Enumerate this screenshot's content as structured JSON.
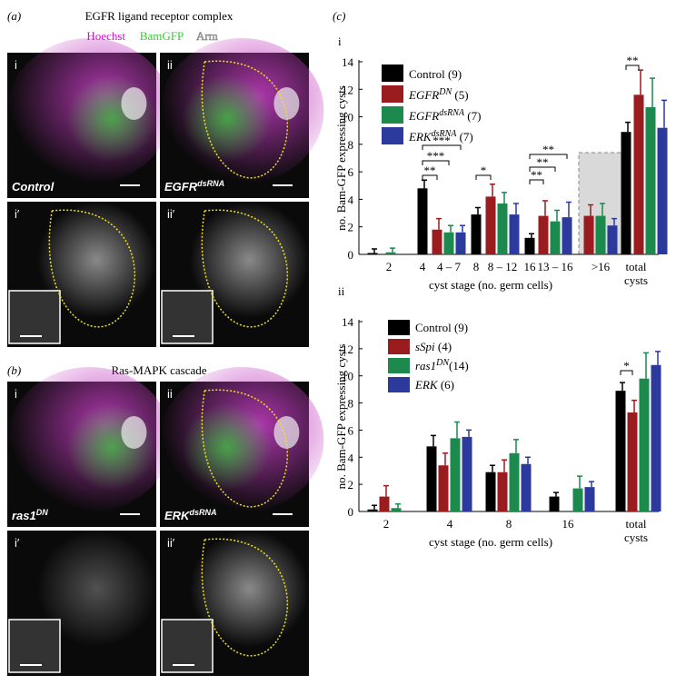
{
  "panels": {
    "a_label": "(a)",
    "a_title": "EGFR ligand receptor complex",
    "stains": [
      "Hoechst",
      "BamGFP",
      "Arm"
    ],
    "b_label": "(b)",
    "b_title": "Ras-MAPK cascade",
    "images": [
      {
        "tag": "i",
        "genotype": [
          "Control"
        ]
      },
      {
        "tag": "ii",
        "genotype": [
          "EGFR",
          "dsRNA"
        ]
      },
      {
        "tag": "i′"
      },
      {
        "tag": "ii′"
      },
      {
        "tag": "i",
        "genotype": [
          "ras1",
          "DN"
        ]
      },
      {
        "tag": "ii",
        "genotype": [
          "ERK",
          "dsRNA"
        ]
      },
      {
        "tag": "i′"
      },
      {
        "tag": "ii′"
      }
    ],
    "c_label": "(c)"
  },
  "chart_data": [
    {
      "type": "bar",
      "panel": "i",
      "x_label": "cyst stage (no. germ cells)",
      "y_label": "no. Bam-GFP expressing cysts",
      "categories": [
        "2",
        "4",
        "8",
        "16",
        ">16",
        "total cysts"
      ],
      "range_labels": [
        null,
        "4 – 7",
        "8 – 12",
        "13 – 16",
        null,
        null
      ],
      "series": [
        {
          "name": [
            {
              "text": "Control (9)",
              "style": "plain"
            }
          ],
          "color": "#000000",
          "values": [
            0.1,
            4.8,
            2.9,
            1.2,
            null,
            8.9
          ],
          "errors": [
            0.3,
            0.6,
            0.5,
            0.3,
            null,
            0.7
          ]
        },
        {
          "name": [
            {
              "text": "EGFR",
              "style": "italic"
            },
            {
              "text": "DN",
              "style": "sup"
            },
            {
              "text": " (5)",
              "style": "plain"
            }
          ],
          "color": "#9b1c1f",
          "values": [
            null,
            1.8,
            4.2,
            2.8,
            2.8,
            11.6
          ],
          "errors": [
            null,
            0.8,
            0.9,
            1.1,
            0.8,
            1.8
          ]
        },
        {
          "name": [
            {
              "text": "EGFR",
              "style": "italic"
            },
            {
              "text": "dsRNA",
              "style": "sup"
            },
            {
              "text": " (7)",
              "style": "plain"
            }
          ],
          "color": "#1b8a4c",
          "values": [
            0.15,
            1.6,
            3.7,
            2.4,
            2.8,
            10.7
          ],
          "errors": [
            0.3,
            0.5,
            0.8,
            0.8,
            0.9,
            2.1
          ]
        },
        {
          "name": [
            {
              "text": "ERK",
              "style": "italic"
            },
            {
              "text": "dsRNA",
              "style": "sup"
            },
            {
              "text": " (7)",
              "style": "plain"
            }
          ],
          "color": "#2b3a9c",
          "values": [
            null,
            1.6,
            2.9,
            2.7,
            2.1,
            9.2
          ],
          "errors": [
            null,
            0.5,
            0.8,
            1.1,
            0.5,
            2.0
          ]
        }
      ],
      "annotations": [
        "**",
        "**",
        "***",
        "***",
        "*",
        "**",
        "**",
        "**"
      ],
      "ylim": [
        0,
        14
      ],
      "yticks": [
        0,
        2,
        4,
        6,
        8,
        10,
        12,
        14
      ]
    },
    {
      "type": "bar",
      "panel": "ii",
      "x_label": "cyst stage (no. germ cells)",
      "y_label": "no. Bam-GFP expressing cysts",
      "categories": [
        "2",
        "4",
        "8",
        "16",
        "total cysts"
      ],
      "series": [
        {
          "name": [
            {
              "text": "Control (9)",
              "style": "plain"
            }
          ],
          "color": "#000000",
          "values": [
            0.15,
            4.8,
            2.9,
            1.1,
            8.9
          ],
          "errors": [
            0.3,
            0.8,
            0.5,
            0.3,
            0.6
          ]
        },
        {
          "name": [
            {
              "text": "sSpi",
              "style": "italic"
            },
            {
              "text": " (4)",
              "style": "plain"
            }
          ],
          "color": "#9b1c1f",
          "values": [
            1.1,
            3.4,
            2.9,
            null,
            7.3
          ],
          "errors": [
            0.8,
            0.9,
            0.9,
            null,
            0.9
          ]
        },
        {
          "name": [
            {
              "text": "ras1",
              "style": "italic"
            },
            {
              "text": "DN",
              "style": "sup"
            },
            {
              "text": "(14)",
              "style": "plain"
            }
          ],
          "color": "#1b8a4c",
          "values": [
            0.25,
            5.4,
            4.3,
            1.7,
            9.8
          ],
          "errors": [
            0.3,
            1.2,
            1.0,
            0.9,
            1.9
          ]
        },
        {
          "name": [
            {
              "text": "ERK",
              "style": "italic"
            },
            {
              "text": " (6)",
              "style": "plain"
            }
          ],
          "color": "#2b3a9c",
          "values": [
            null,
            5.5,
            3.5,
            1.8,
            10.8
          ],
          "errors": [
            null,
            0.5,
            0.5,
            0.4,
            1.0
          ]
        }
      ],
      "annotations": [
        "*"
      ],
      "ylim": [
        0,
        14
      ],
      "yticks": [
        0,
        2,
        4,
        6,
        8,
        10,
        12,
        14
      ]
    }
  ]
}
